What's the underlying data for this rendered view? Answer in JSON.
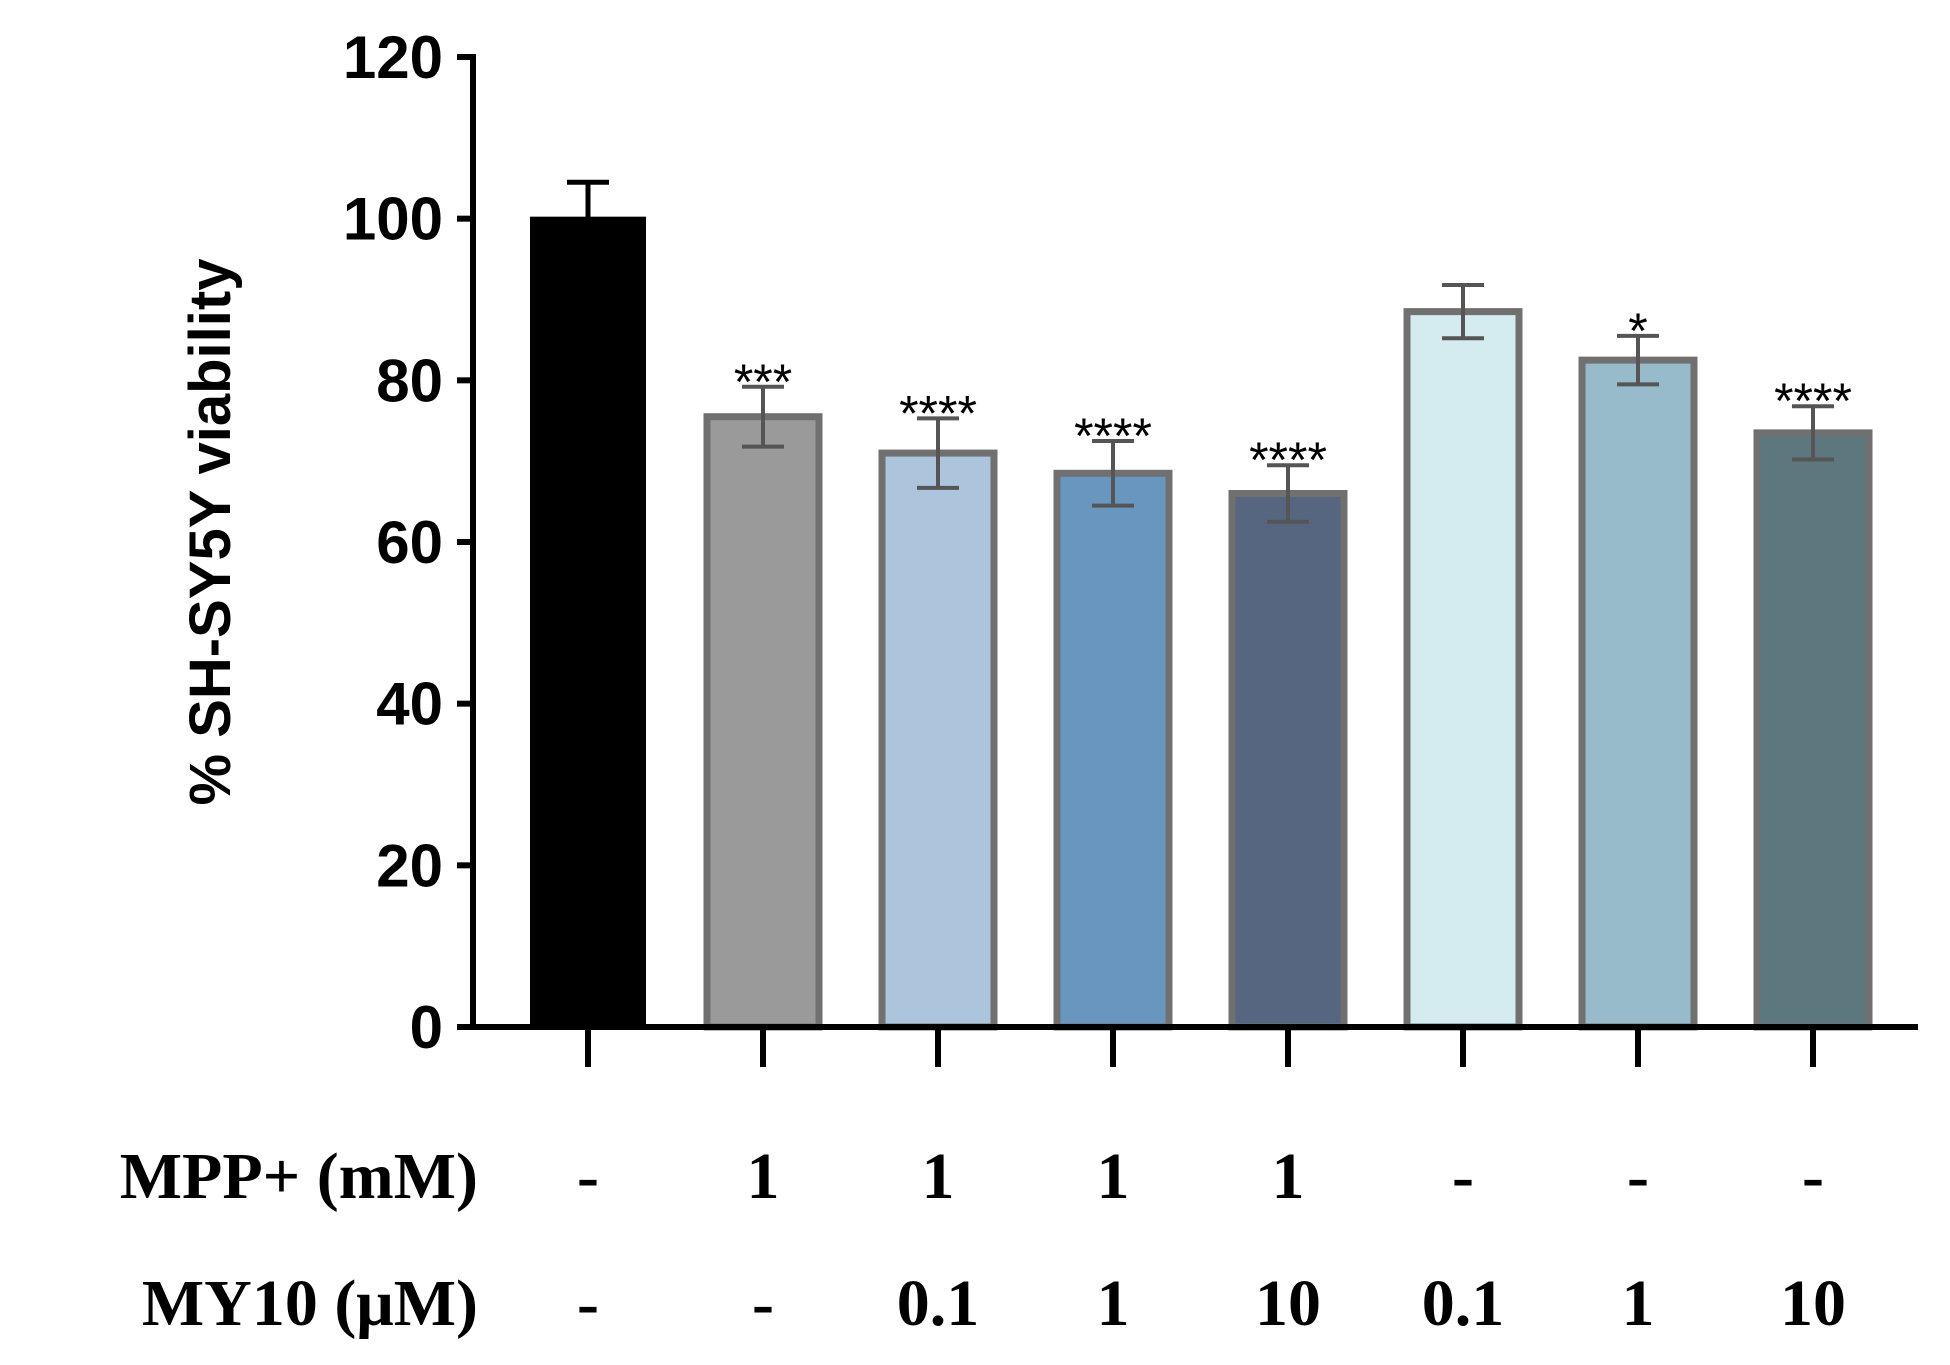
{
  "chart_data": {
    "type": "bar",
    "title": "",
    "xlabel": "",
    "ylabel": "% SH-SY5Y viability",
    "ylim": [
      0,
      120
    ],
    "yticks": [
      0,
      20,
      40,
      60,
      80,
      100,
      120
    ],
    "grid": false,
    "values": [
      100,
      75.5,
      71,
      68.5,
      66,
      88.5,
      82.5,
      73.5
    ],
    "errors": [
      4.5,
      3.7,
      4.3,
      4.0,
      3.5,
      3.3,
      3.0,
      3.3
    ],
    "significance": [
      "",
      "***",
      "****",
      "****",
      "****",
      "",
      "*",
      "****"
    ],
    "colors": [
      "#000000",
      "#9a9a9a",
      "#acc4dc",
      "#6896bf",
      "#566680",
      "#d4ebef",
      "#97bbca",
      "#5c777d"
    ],
    "conditions": [
      {
        "label": "MPP+ (mM)",
        "values": [
          "-",
          "1",
          "1",
          "1",
          "1",
          "-",
          "-",
          "-"
        ]
      },
      {
        "label": "MY10 (μM)",
        "values": [
          "-",
          "-",
          "0.1",
          "1",
          "10",
          "0.1",
          "1",
          "10"
        ]
      }
    ]
  }
}
